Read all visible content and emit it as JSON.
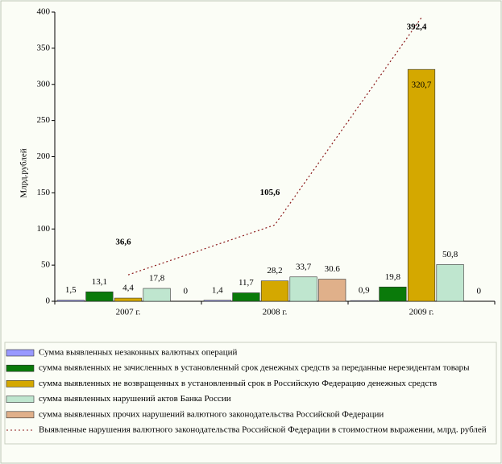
{
  "chart_data": {
    "type": "bar",
    "y_label": "Млрд.рублей",
    "categories": [
      "2007 г.",
      "2008 г.",
      "2009 г."
    ],
    "ylim": [
      0,
      400
    ],
    "yticks": [
      0,
      50,
      100,
      150,
      200,
      250,
      300,
      350,
      400
    ],
    "series": [
      {
        "name": "Сумма выявленных незаконных валютных операций",
        "color": "#9999ff",
        "values": [
          1.5,
          1.4,
          0.9
        ],
        "value_labels": [
          "1,5",
          "1,4",
          "0,9"
        ]
      },
      {
        "name": "сумма выявленных не зачисленных в установленный срок денежных средств за переданные нерезидентам товары",
        "color": "#0a7a0a",
        "values": [
          13.1,
          11.7,
          19.8
        ],
        "value_labels": [
          "13,1",
          "11,7",
          "19,8"
        ]
      },
      {
        "name": "сумма выявленных не возвращенных в установленный срок в Российскую Федерацию денежных средств",
        "color": "#d4a800",
        "values": [
          4.4,
          28.2,
          320.7
        ],
        "value_labels": [
          "4,4",
          "28,2",
          "320,7"
        ]
      },
      {
        "name": "сумма выявленных нарушений актов Банка России",
        "color": "#bfe6cf",
        "values": [
          17.8,
          33.7,
          50.8
        ],
        "value_labels": [
          "17,8",
          "33,7",
          "50,8"
        ]
      },
      {
        "name": "сумма выявленных прочих нарушений валютного законодательства Российской Федерации",
        "color": "#e0b08a",
        "values": [
          0,
          30.6,
          0
        ]
      },
      {
        "name": "Выявленные нарушения валютного законодательства Российской Федерации в стоимостном выражении, млрд. рублей",
        "type": "line",
        "color": "#8b1a1a",
        "values": [
          36.6,
          105.6,
          392.4
        ],
        "value_labels": [
          "36,6",
          "105,6",
          "392,4"
        ]
      }
    ]
  }
}
